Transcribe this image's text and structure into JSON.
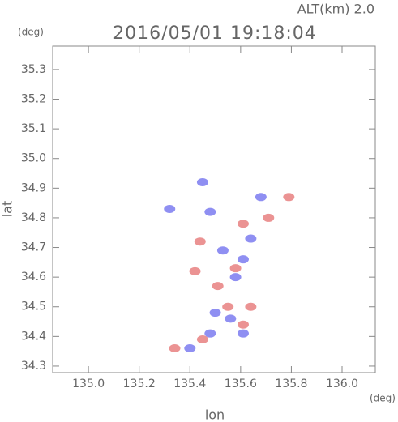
{
  "chart_data": {
    "type": "scatter",
    "title": "2016/05/01 19:18:04",
    "subtitle": "ALT(km) 2.0",
    "x_label": "lon",
    "y_label": "lat",
    "x_unit": "(deg)",
    "y_unit": "(deg)",
    "xlim": [
      134.859,
      136.131
    ],
    "ylim": [
      34.278,
      35.379
    ],
    "xticks": [
      {
        "value": 135.0,
        "label": "135.0"
      },
      {
        "value": 135.2,
        "label": "135.2"
      },
      {
        "value": 135.4,
        "label": "135.4"
      },
      {
        "value": 135.6,
        "label": "135.6"
      },
      {
        "value": 135.8,
        "label": "135.8"
      },
      {
        "value": 136.0,
        "label": "136.0"
      }
    ],
    "yticks": [
      34.3,
      34.4,
      34.5,
      34.6,
      34.7,
      34.8,
      34.9,
      {
        "value": 35.0,
        "label": "35.0"
      },
      35.1,
      35.2,
      35.3
    ],
    "grid": false,
    "series": [
      {
        "color": "#e88080",
        "x": [
          135.61,
          135.71,
          135.42,
          135.58,
          135.61,
          135.55,
          135.64,
          135.45,
          135.34,
          135.79,
          135.51,
          135.44
        ],
        "y": [
          34.78,
          34.8,
          34.62,
          34.63,
          34.44,
          34.5,
          34.5,
          34.39,
          34.36,
          34.87,
          34.57,
          34.72
        ]
      },
      {
        "color": "#7b7bf0",
        "x": [
          135.45,
          135.48,
          135.32,
          135.53,
          135.61,
          135.5,
          135.61,
          135.48,
          135.4,
          135.64,
          135.68,
          135.56,
          135.58
        ],
        "y": [
          34.92,
          34.82,
          34.83,
          34.69,
          34.66,
          34.48,
          34.41,
          34.41,
          34.36,
          34.73,
          34.87,
          34.46,
          34.6
        ]
      }
    ]
  }
}
